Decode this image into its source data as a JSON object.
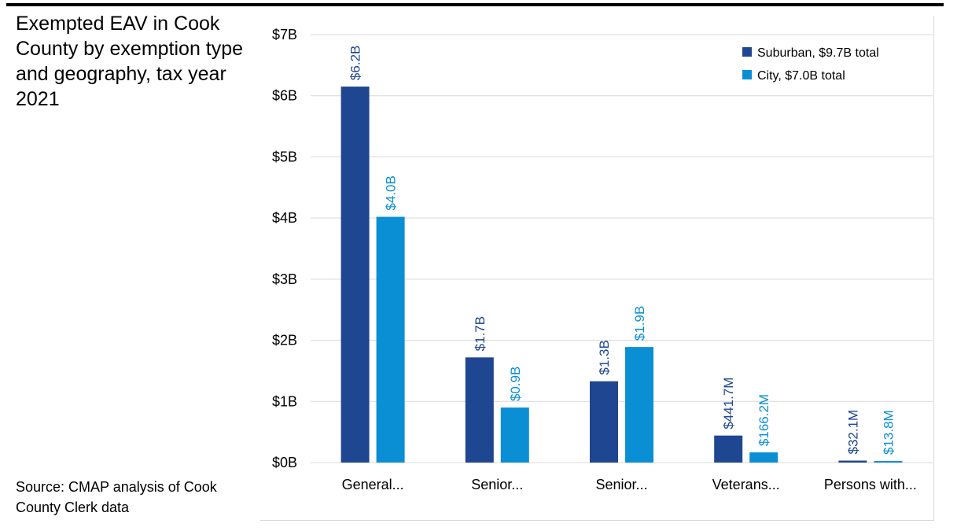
{
  "title": "Exempted EAV in Cook County by exemption type and geography, tax year 2021",
  "source": "Source: CMAP analysis of Cook County Clerk data",
  "colors": {
    "suburban": "#1f4690",
    "city": "#0b8fd4",
    "grid": "#d9d9d9"
  },
  "chart_data": {
    "type": "bar",
    "categories": [
      "General...",
      "Senior...",
      "Senior...",
      "Veterans...",
      "Persons with..."
    ],
    "series": [
      {
        "name": "Suburban, $9.7B total",
        "values": [
          6.15,
          1.72,
          1.33,
          0.4417,
          0.0321
        ],
        "labels": [
          "$6.2B",
          "$1.7B",
          "$1.3B",
          "$441.7M",
          "$32.1M"
        ]
      },
      {
        "name": "City, $7.0B total",
        "values": [
          4.02,
          0.9,
          1.89,
          0.1662,
          0.0138
        ],
        "labels": [
          "$4.0B",
          "$0.9B",
          "$1.9B",
          "$166.2M",
          "$13.8M"
        ]
      }
    ],
    "yticks": [
      "$0B",
      "$1B",
      "$2B",
      "$3B",
      "$4B",
      "$5B",
      "$6B",
      "$7B"
    ],
    "ylim": [
      0,
      7
    ],
    "unit": "billions of dollars",
    "grid": true,
    "legend_position": "top-right"
  }
}
